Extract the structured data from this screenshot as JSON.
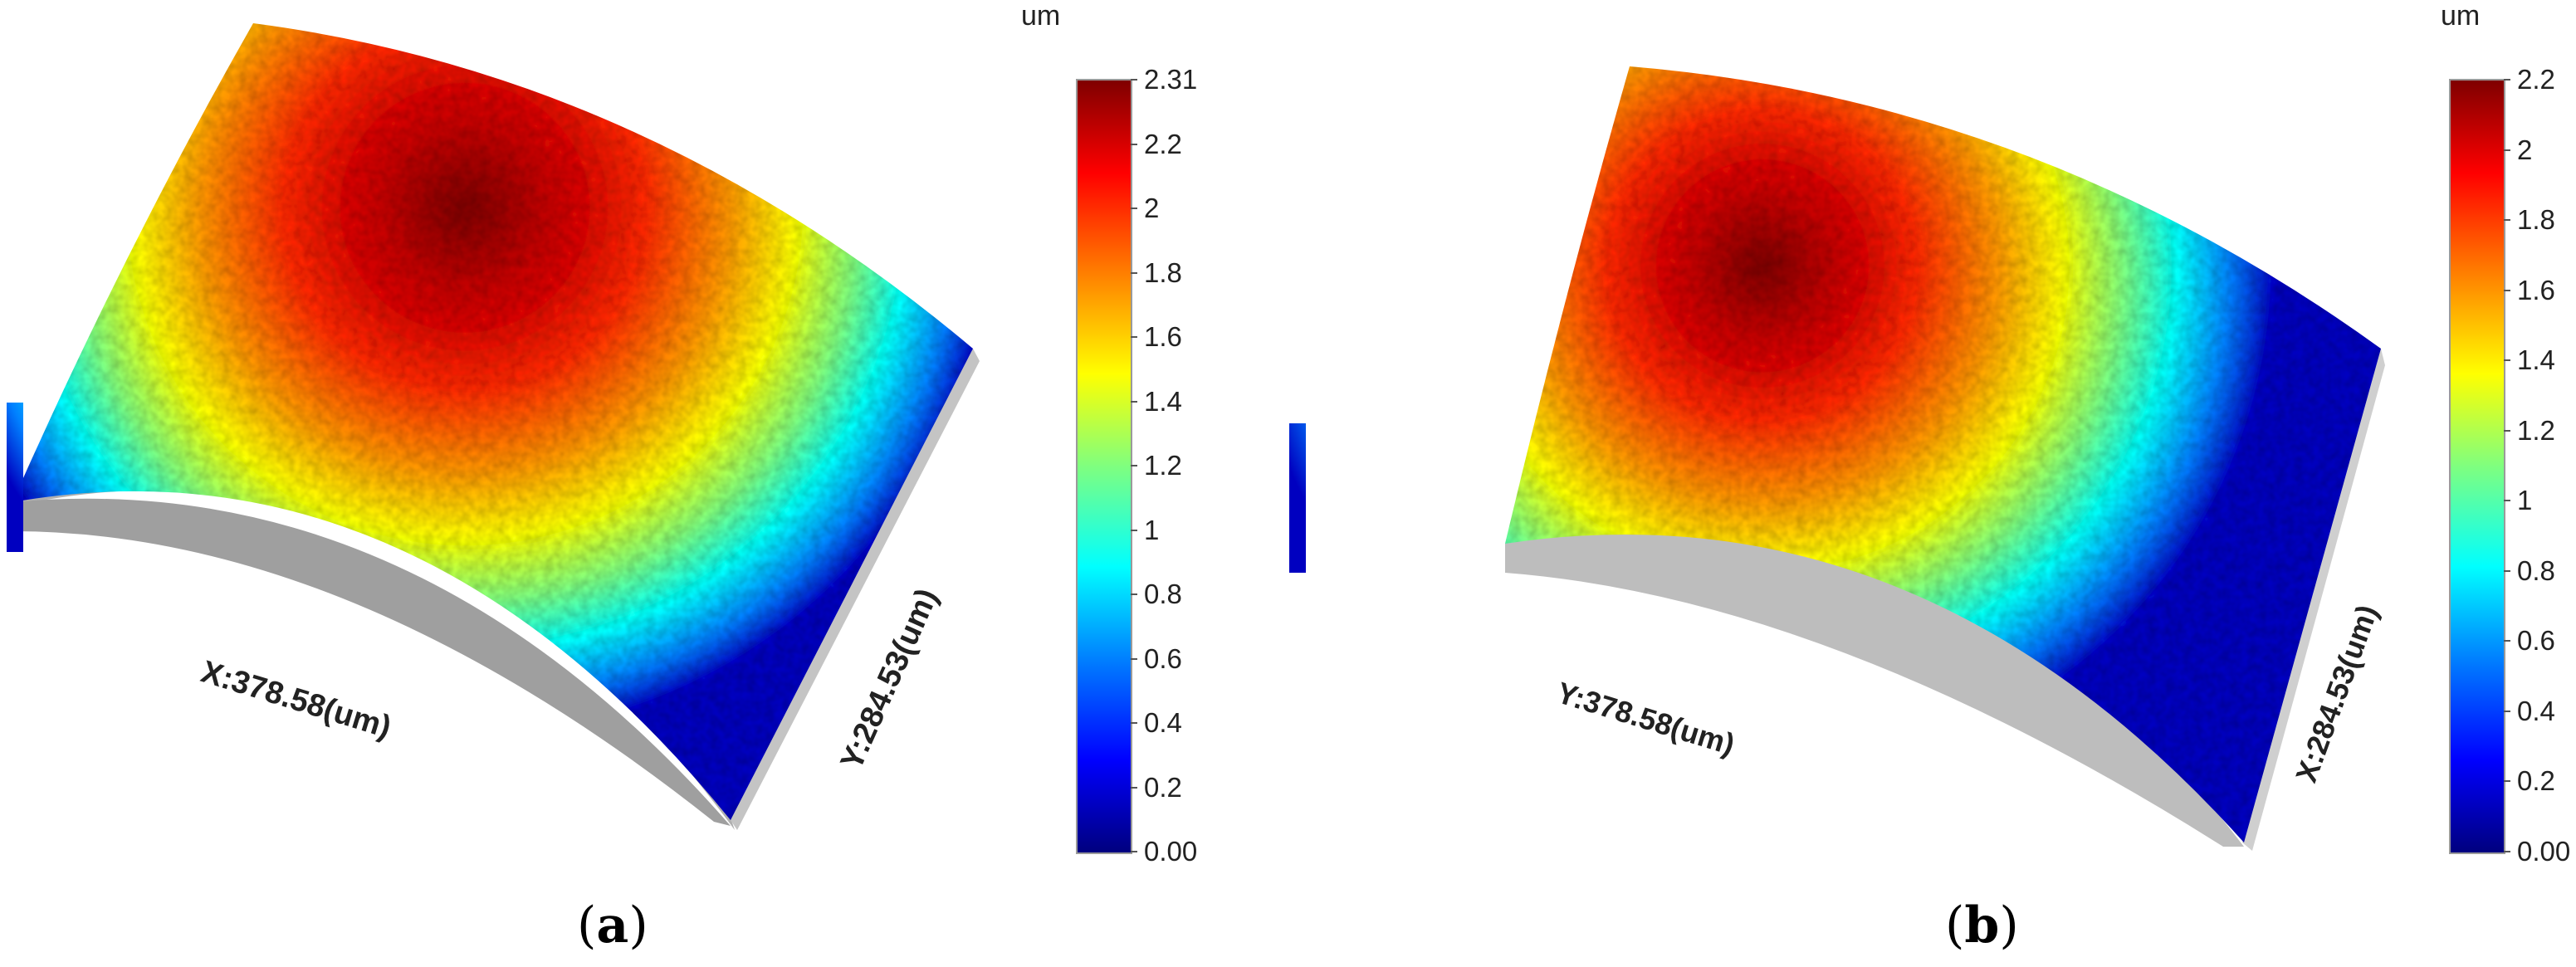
{
  "panels": [
    {
      "id": "a",
      "label_open": "(",
      "label_letter": "a",
      "label_close": ")",
      "x_axis_label": "X:378.58(um)",
      "y_axis_label": "Y:284.53(um)",
      "colorbar_unit": "um",
      "colorbar_ticks": [
        "2.31",
        "2.2",
        "2",
        "1.8",
        "1.6",
        "1.4",
        "1.2",
        "1",
        "0.8",
        "0.6",
        "0.4",
        "0.2",
        "0.00"
      ]
    },
    {
      "id": "b",
      "label_open": "(",
      "label_letter": "b",
      "label_close": ")",
      "x_axis_label": "Y:378.58(um)",
      "y_axis_label": "X:284.53(um)",
      "colorbar_unit": "um",
      "colorbar_ticks": [
        "2.2",
        "2",
        "1.8",
        "1.6",
        "1.4",
        "1.2",
        "1",
        "0.8",
        "0.6",
        "0.4",
        "0.2",
        "0.00"
      ]
    }
  ],
  "colormap": [
    "#00007f",
    "#0000ff",
    "#007fff",
    "#00ffff",
    "#7fff7f",
    "#ffff00",
    "#ff7f00",
    "#ff0000",
    "#7f0000"
  ],
  "side_wall_color": "#b5b5b5"
}
